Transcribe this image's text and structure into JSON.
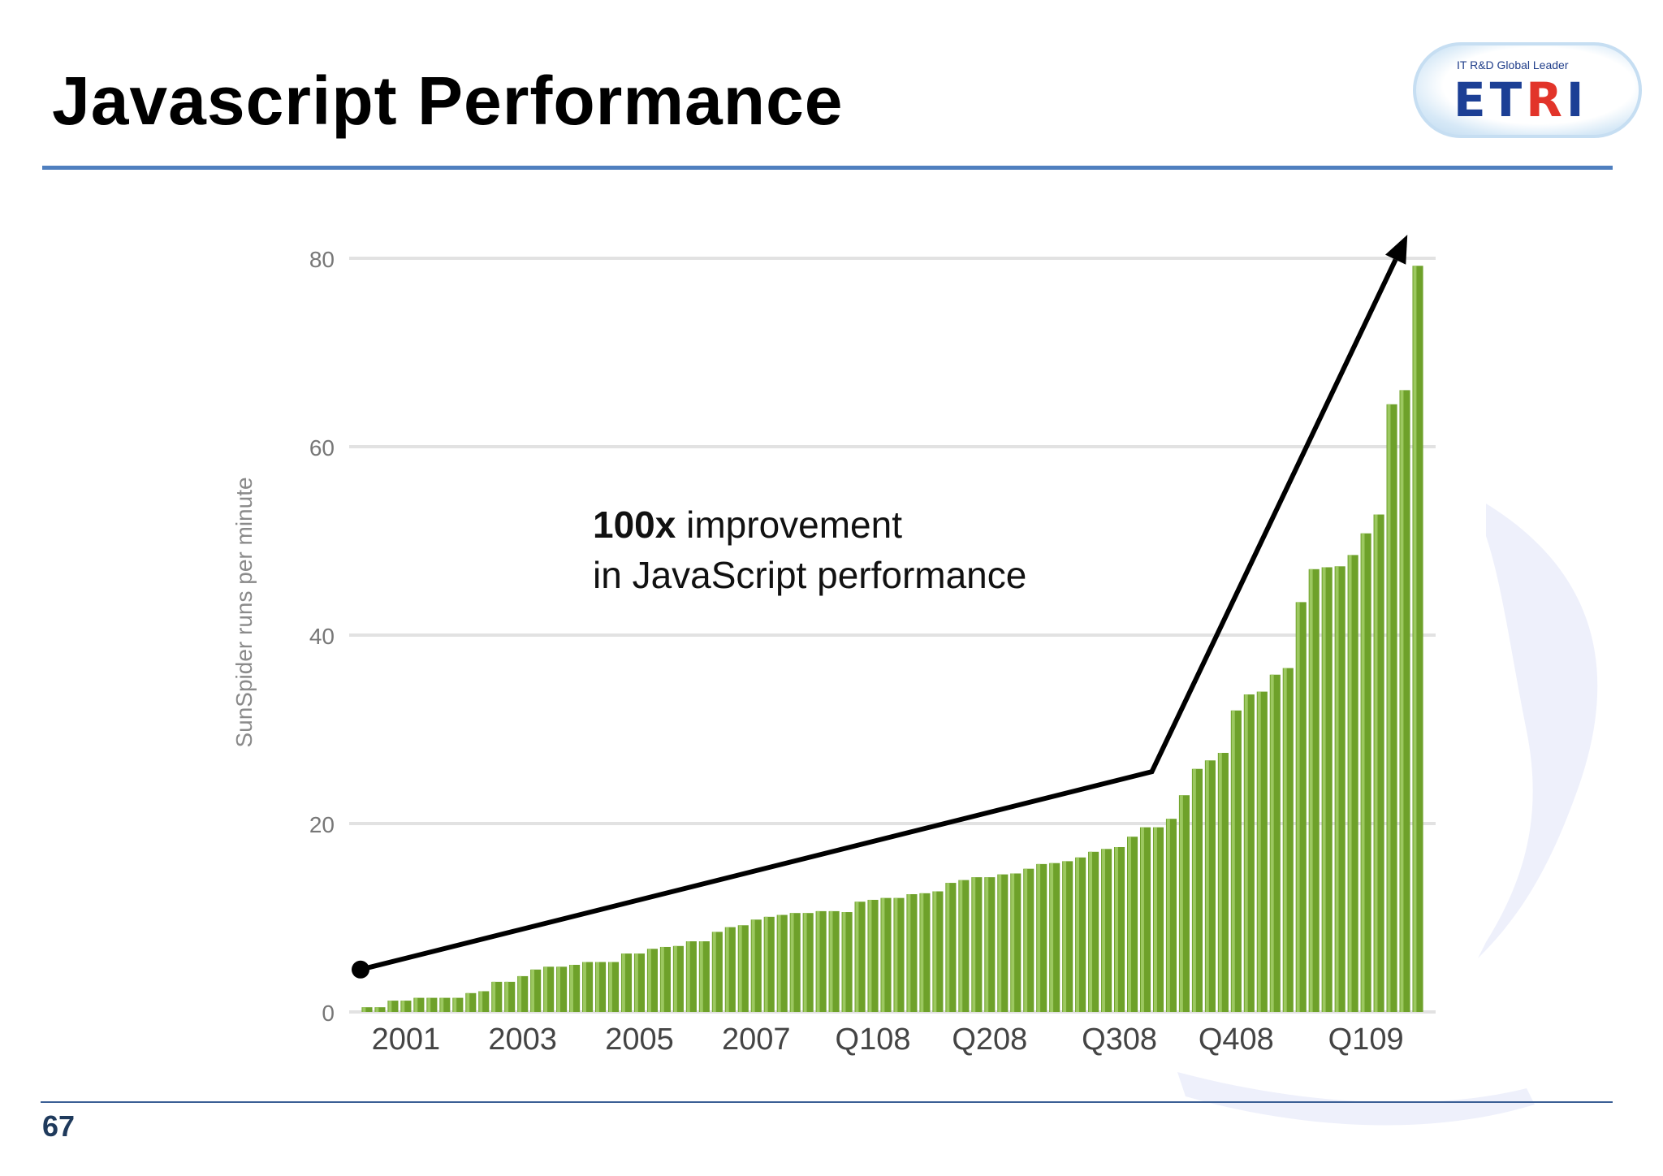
{
  "slide": {
    "title": "Javascript Performance",
    "page_number": "67"
  },
  "logo": {
    "tagline": "IT R&D Global Leader",
    "letters": [
      "E",
      "T",
      "R",
      "I"
    ]
  },
  "colors": {
    "bar": "#6ea12a",
    "bar_highlight": "#9cc860",
    "rule": "#4f7fbf",
    "arrow": "#000000",
    "logo_blue": "#1c3f95",
    "logo_red": "#e2342a"
  },
  "chart_data": {
    "type": "bar",
    "title": "",
    "xlabel": "",
    "ylabel": "SunSpider runs per minute",
    "ylim": [
      0,
      80
    ],
    "yticks": [
      0,
      20,
      40,
      60,
      80
    ],
    "grid": true,
    "legend": "none",
    "x_tick_labels": [
      {
        "label": "2001",
        "index": 3
      },
      {
        "label": "2003",
        "index": 12
      },
      {
        "label": "2005",
        "index": 21
      },
      {
        "label": "2007",
        "index": 30
      },
      {
        "label": "Q108",
        "index": 39
      },
      {
        "label": "Q208",
        "index": 48
      },
      {
        "label": "Q308",
        "index": 58
      },
      {
        "label": "Q408",
        "index": 67
      },
      {
        "label": "Q109",
        "index": 77
      }
    ],
    "values": [
      0.5,
      0.5,
      1.2,
      1.2,
      1.5,
      1.5,
      1.5,
      1.5,
      2.0,
      2.2,
      3.2,
      3.2,
      3.8,
      4.5,
      4.8,
      4.8,
      5.0,
      5.3,
      5.3,
      5.3,
      6.2,
      6.2,
      6.7,
      6.9,
      7.0,
      7.5,
      7.5,
      8.5,
      9.0,
      9.2,
      9.8,
      10.1,
      10.3,
      10.5,
      10.5,
      10.7,
      10.7,
      10.6,
      11.7,
      11.9,
      12.1,
      12.1,
      12.5,
      12.6,
      12.8,
      13.7,
      14.0,
      14.3,
      14.3,
      14.6,
      14.7,
      15.2,
      15.7,
      15.8,
      16.0,
      16.4,
      17.0,
      17.3,
      17.5,
      18.6,
      19.6,
      19.6,
      20.5,
      23.0,
      25.8,
      26.7,
      27.5,
      32.0,
      33.7,
      34.0,
      35.8,
      36.5,
      43.5,
      47.0,
      47.2,
      47.3,
      48.5,
      50.8,
      52.8,
      64.5,
      66.0,
      79.2
    ],
    "annotation": {
      "line1_bold": "100x",
      "line1_rest": " improvement",
      "line2": "in JavaScript performance",
      "arrow_points": [
        {
          "index": -0.5,
          "value": 4.5
        },
        {
          "index": 60.5,
          "value": 25.5
        },
        {
          "index": 80.2,
          "value": 82.5
        }
      ]
    }
  }
}
